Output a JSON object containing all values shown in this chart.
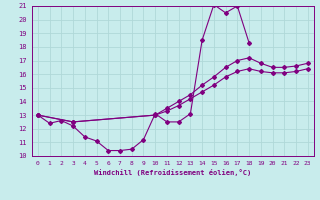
{
  "xlabel": "Windchill (Refroidissement éolien,°C)",
  "bg_color": "#c8ecec",
  "grid_color": "#b0d8d8",
  "line_color": "#800080",
  "xlim": [
    -0.5,
    23.5
  ],
  "ylim": [
    10,
    21
  ],
  "xticks": [
    0,
    1,
    2,
    3,
    4,
    5,
    6,
    7,
    8,
    9,
    10,
    11,
    12,
    13,
    14,
    15,
    16,
    17,
    18,
    19,
    20,
    21,
    22,
    23
  ],
  "yticks": [
    10,
    11,
    12,
    13,
    14,
    15,
    16,
    17,
    18,
    19,
    20,
    21
  ],
  "curve1_x": [
    0,
    1,
    2,
    3,
    4,
    5,
    6,
    7,
    8,
    9,
    10,
    11,
    12,
    13,
    14,
    15,
    16,
    17,
    18
  ],
  "curve1_y": [
    13.0,
    12.4,
    12.6,
    12.2,
    11.4,
    11.1,
    10.4,
    10.4,
    10.5,
    11.2,
    13.1,
    12.5,
    12.5,
    13.1,
    18.5,
    21.1,
    20.5,
    21.0,
    18.3
  ],
  "curve2_x": [
    0,
    3,
    10,
    11,
    12,
    13,
    14,
    15,
    16,
    17,
    18,
    19,
    20,
    21,
    22,
    23
  ],
  "curve2_y": [
    13.0,
    12.5,
    13.0,
    13.5,
    14.0,
    14.5,
    15.2,
    15.8,
    16.5,
    17.0,
    17.2,
    16.8,
    16.5,
    16.5,
    16.6,
    16.8
  ],
  "curve3_x": [
    0,
    3,
    10,
    11,
    12,
    13,
    14,
    15,
    16,
    17,
    18,
    19,
    20,
    21,
    22,
    23
  ],
  "curve3_y": [
    13.0,
    12.5,
    13.0,
    13.3,
    13.7,
    14.2,
    14.7,
    15.2,
    15.8,
    16.2,
    16.4,
    16.2,
    16.1,
    16.1,
    16.2,
    16.4
  ]
}
